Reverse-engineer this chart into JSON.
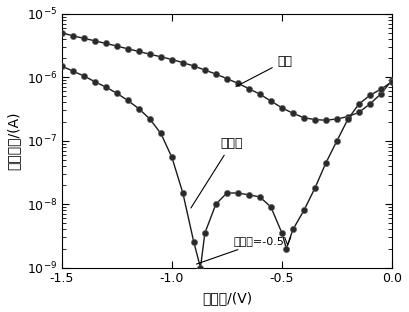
{
  "xlabel": "栊电压/(V)",
  "ylabel": "漏源电流/(A)",
  "xlim": [
    -1.5,
    0.0
  ],
  "ylim": [
    1e-09,
    1e-05
  ],
  "annotation_text": "栊电压=-0.5V",
  "label_light": "光照",
  "label_dark": "不光照",
  "background_color": "#ffffff",
  "curve_color": "#1a1a1a",
  "light_curve_x": [
    -1.5,
    -1.45,
    -1.4,
    -1.35,
    -1.3,
    -1.25,
    -1.2,
    -1.15,
    -1.1,
    -1.05,
    -1.0,
    -0.95,
    -0.9,
    -0.85,
    -0.8,
    -0.75,
    -0.7,
    -0.65,
    -0.6,
    -0.55,
    -0.5,
    -0.45,
    -0.4,
    -0.35,
    -0.3,
    -0.25,
    -0.2,
    -0.15,
    -0.1,
    -0.05,
    0.0
  ],
  "light_curve_y": [
    5e-06,
    4.5e-06,
    4.1e-06,
    3.75e-06,
    3.4e-06,
    3.1e-06,
    2.8e-06,
    2.55e-06,
    2.3e-06,
    2.1e-06,
    1.9e-06,
    1.7e-06,
    1.5e-06,
    1.3e-06,
    1.12e-06,
    9.5e-07,
    8e-07,
    6.6e-07,
    5.4e-07,
    4.2e-07,
    3.3e-07,
    2.7e-07,
    2.3e-07,
    2.15e-07,
    2.1e-07,
    2.2e-07,
    2.4e-07,
    2.8e-07,
    3.8e-07,
    5.5e-07,
    9e-07
  ],
  "dark_curve_x": [
    -1.5,
    -1.45,
    -1.4,
    -1.35,
    -1.3,
    -1.25,
    -1.2,
    -1.15,
    -1.1,
    -1.05,
    -1.0,
    -0.95,
    -0.9,
    -0.87,
    -0.85,
    -0.8,
    -0.75,
    -0.7,
    -0.65,
    -0.6,
    -0.55,
    -0.5,
    -0.48,
    -0.45,
    -0.4,
    -0.35,
    -0.3,
    -0.25,
    -0.2,
    -0.15,
    -0.1,
    -0.05,
    0.0
  ],
  "dark_curve_y": [
    1.5e-06,
    1.25e-06,
    1.05e-06,
    8.5e-07,
    7e-07,
    5.6e-07,
    4.3e-07,
    3.2e-07,
    2.2e-07,
    1.3e-07,
    5.5e-08,
    1.5e-08,
    2.5e-09,
    1e-09,
    3.5e-09,
    1e-08,
    1.5e-08,
    1.5e-08,
    1.4e-08,
    1.3e-08,
    9e-09,
    3.5e-09,
    2e-09,
    4e-09,
    8e-09,
    1.8e-08,
    4.5e-08,
    1e-07,
    2.2e-07,
    3.8e-07,
    5.2e-07,
    6.5e-07,
    8.5e-07
  ],
  "marker_size": 4.5,
  "line_width": 1.0,
  "tick_fontsize": 9,
  "label_fontsize": 10,
  "annot_fontsize": 9
}
